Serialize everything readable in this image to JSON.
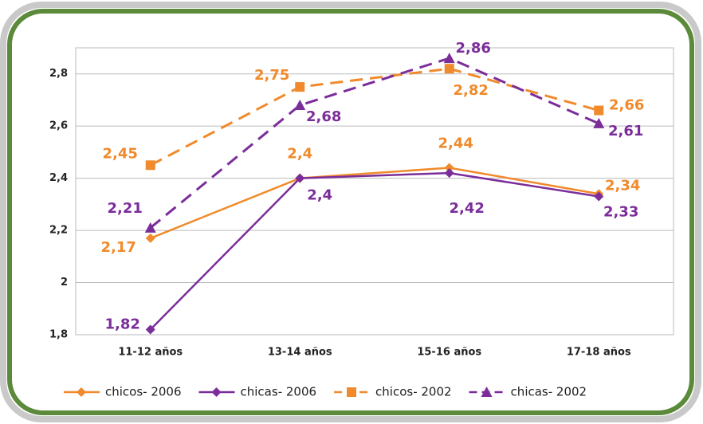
{
  "chart_data": {
    "type": "line",
    "categories": [
      "11-12 años",
      "13-14 años",
      "15-16 años",
      "17-18 años"
    ],
    "series": [
      {
        "name": "chicos- 2006",
        "color": "#f08a2c",
        "dash": false,
        "marker": "diamond",
        "values": [
          2.17,
          2.4,
          2.44,
          2.34
        ],
        "value_labels": [
          "2,17",
          "2,4",
          "2,44",
          "2,34"
        ]
      },
      {
        "name": "chicas- 2006",
        "color": "#7b2d9a",
        "dash": false,
        "marker": "diamond",
        "values": [
          1.82,
          2.4,
          2.42,
          2.33
        ],
        "value_labels": [
          "1,82",
          "2,4",
          "2,42",
          "2,33"
        ]
      },
      {
        "name": "chicos- 2002",
        "color": "#f08a2c",
        "dash": true,
        "marker": "square",
        "values": [
          2.45,
          2.75,
          2.82,
          2.66
        ],
        "value_labels": [
          "2,45",
          "2,75",
          "2,82",
          "2,66"
        ]
      },
      {
        "name": "chicas- 2002",
        "color": "#7b2d9a",
        "dash": true,
        "marker": "triangle",
        "values": [
          2.21,
          2.68,
          2.86,
          2.61
        ],
        "value_labels": [
          "2,21",
          "2,68",
          "2,86",
          "2,61"
        ]
      }
    ],
    "ylim": [
      1.8,
      2.9
    ],
    "yticks": [
      {
        "value": 1.8,
        "label": "1,8"
      },
      2,
      {
        "value": 2.2,
        "label": "2,2"
      },
      {
        "value": 2.4,
        "label": "2,4"
      },
      {
        "value": 2.6,
        "label": "2,6"
      },
      {
        "value": 2.8,
        "label": "2,8"
      }
    ],
    "grid": true,
    "legend": "bottom"
  }
}
